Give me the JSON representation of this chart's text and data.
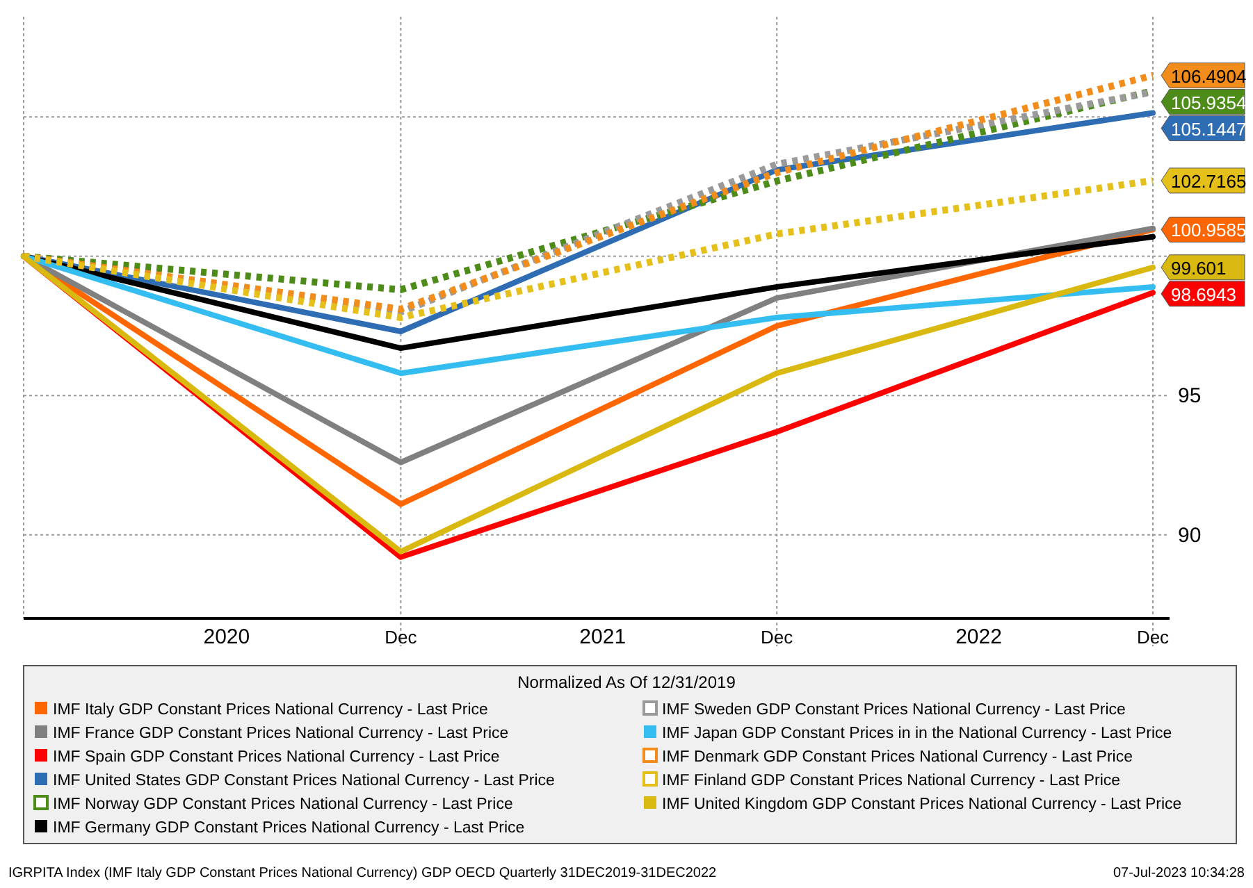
{
  "chart_data": {
    "type": "line",
    "legend_title": "Normalized As Of 12/31/2019",
    "x": [
      "2019-12",
      "2020-12",
      "2021-12",
      "2022-12"
    ],
    "xlim": [
      "2019-12",
      "2022-12"
    ],
    "xticks": [
      {
        "value": "2020-12",
        "label": "Dec"
      },
      {
        "value": "2021-12",
        "label": "Dec"
      },
      {
        "value": "2022-12",
        "label": "Dec"
      },
      {
        "value": "2020-06-15",
        "label": "2020"
      },
      {
        "value": "2021-06-15",
        "label": "2021"
      },
      {
        "value": "2022-06-15",
        "label": "2022"
      }
    ],
    "ylim": [
      87,
      108.6
    ],
    "yticks": [
      90,
      95,
      {
        "value": 100,
        "label": null
      },
      {
        "value": 105,
        "label": null
      }
    ],
    "grid": true,
    "legend": "bottom",
    "series": [
      {
        "name": "IMF Italy GDP Constant Prices National Currency - Last Price",
        "color": "#ff6600",
        "line_style": "solid",
        "values": [
          100,
          91.1,
          97.5,
          100.9585
        ],
        "value_labels": [
          null,
          null,
          null,
          "100.9585"
        ]
      },
      {
        "name": "IMF France GDP Constant Prices National Currency - Last Price",
        "color": "#808080",
        "line_style": "solid",
        "values": [
          100,
          92.6,
          98.5,
          101.0
        ],
        "value_labels": [
          null,
          null,
          null,
          null
        ]
      },
      {
        "name": "IMF Spain GDP Constant Prices National Currency - Last Price",
        "color": "#ff0000",
        "line_style": "solid",
        "values": [
          100,
          89.2,
          93.7,
          98.6943
        ],
        "value_labels": [
          null,
          null,
          null,
          "98.6943"
        ]
      },
      {
        "name": "IMF United States GDP Constant Prices National Currency - Last Price",
        "color": "#2e6db4",
        "line_style": "solid",
        "values": [
          100,
          97.3,
          103.1,
          105.1447
        ],
        "value_labels": [
          null,
          null,
          null,
          "105.1447"
        ]
      },
      {
        "name": "IMF Norway GDP Constant Prices National Currency - Last Price",
        "color": "#4e8c1a",
        "line_style": "dotted",
        "values": [
          100,
          98.8,
          102.7,
          105.9354
        ],
        "value_labels": [
          null,
          null,
          null,
          "105.9354"
        ]
      },
      {
        "name": "IMF Germany GDP Constant Prices National Currency - Last Price",
        "color": "#000000",
        "line_style": "solid",
        "values": [
          100,
          96.7,
          98.9,
          100.7
        ],
        "value_labels": [
          null,
          null,
          null,
          null
        ]
      },
      {
        "name": "IMF Sweden GDP Constant Prices National Currency - Last Price",
        "color": "#9a9a9a",
        "line_style": "dotted",
        "values": [
          100,
          98.0,
          103.3,
          105.9
        ],
        "value_labels": [
          null,
          null,
          null,
          null
        ]
      },
      {
        "name": "IMF Japan GDP Constant Prices in in the National Currency - Last Price",
        "color": "#33bdf0",
        "line_style": "solid",
        "values": [
          100,
          95.8,
          97.8,
          98.9
        ],
        "value_labels": [
          null,
          null,
          null,
          null
        ]
      },
      {
        "name": "IMF Denmark GDP Constant Prices National Currency - Last Price",
        "color": "#f28c1a",
        "line_style": "dotted",
        "values": [
          100,
          98.1,
          103.0,
          106.4904
        ],
        "value_labels": [
          null,
          null,
          null,
          "106.4904"
        ]
      },
      {
        "name": "IMF Finland GDP Constant Prices National Currency - Last Price",
        "color": "#e6c01a",
        "line_style": "dotted",
        "values": [
          100,
          97.8,
          100.8,
          102.7165
        ],
        "value_labels": [
          null,
          null,
          null,
          "102.7165"
        ]
      },
      {
        "name": "IMF United Kingdom GDP Constant Prices National Currency - Last Price",
        "color": "#d9b80f",
        "line_style": "solid",
        "values": [
          100,
          89.4,
          95.8,
          99.601
        ],
        "value_labels": [
          null,
          null,
          null,
          "99.601"
        ]
      }
    ],
    "annotations": [
      "IGRPITA Index (IMF Italy GDP Constant Prices National Currency) GDP OECD  Quarterly 31DEC2019-31DEC2022",
      "07-Jul-2023 10:34:28"
    ]
  }
}
